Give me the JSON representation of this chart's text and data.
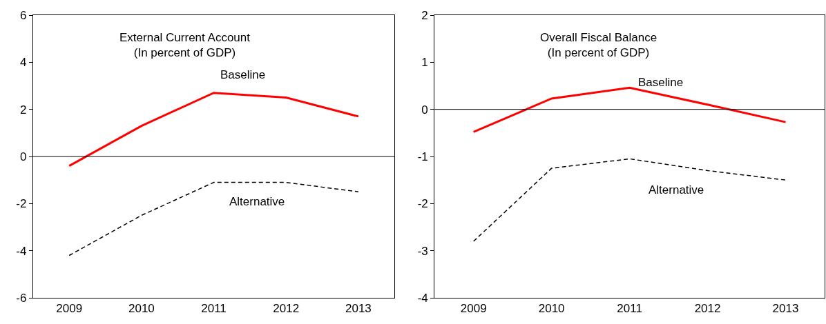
{
  "chart_data": [
    {
      "type": "line",
      "title": "External Current Account",
      "subtitle": "(In percent of GDP)",
      "categories": [
        "2009",
        "2010",
        "2011",
        "2012",
        "2013"
      ],
      "series": [
        {
          "name": "Baseline",
          "color": "#ff0000",
          "line_style": "solid",
          "values": [
            -0.4,
            1.3,
            2.7,
            2.5,
            1.7
          ]
        },
        {
          "name": "Alternative",
          "color": "#000000",
          "line_style": "dashed",
          "values": [
            -4.2,
            -2.5,
            -1.1,
            -1.1,
            -1.5
          ]
        }
      ],
      "ylim": [
        -6,
        6
      ],
      "yticks": [
        -6,
        -4,
        -2,
        0,
        2,
        4,
        6
      ],
      "legend": false,
      "marker": "none",
      "ref_lines": [
        {
          "axis": "y",
          "value": 0
        }
      ]
    },
    {
      "type": "line",
      "title": "Overall Fiscal Balance",
      "subtitle": "(In percent of GDP)",
      "categories": [
        "2009",
        "2010",
        "2011",
        "2012",
        "2013"
      ],
      "series": [
        {
          "name": "Baseline",
          "color": "#ff0000",
          "line_style": "solid",
          "values": [
            -0.48,
            0.23,
            0.46,
            0.1,
            -0.27
          ]
        },
        {
          "name": "Alternative",
          "color": "#000000",
          "line_style": "dashed",
          "values": [
            -2.8,
            -1.25,
            -1.05,
            -1.3,
            -1.5
          ]
        }
      ],
      "ylim": [
        -4,
        2
      ],
      "yticks": [
        -4,
        -3,
        -2,
        -1,
        0,
        1,
        2
      ],
      "legend": false,
      "marker": "none",
      "ref_lines": [
        {
          "axis": "y",
          "value": 0
        }
      ]
    }
  ]
}
